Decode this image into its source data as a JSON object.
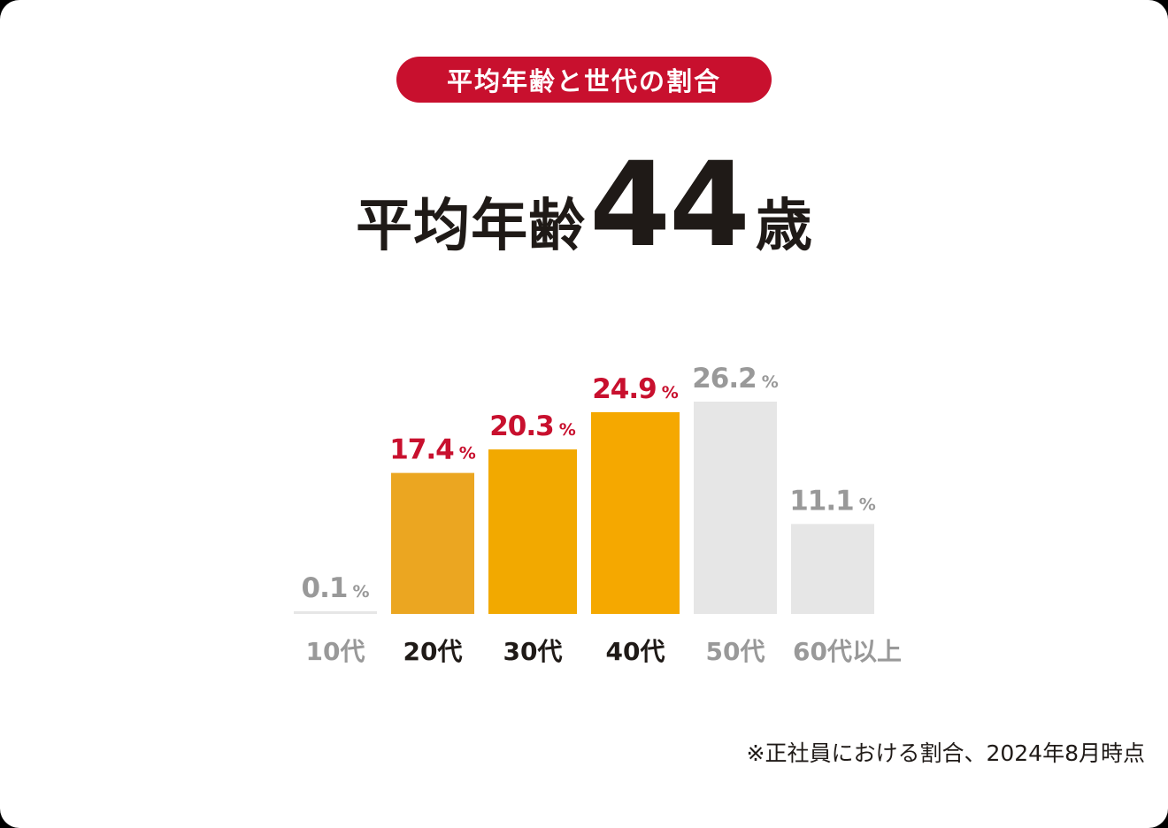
{
  "badge": "平均年齢と世代の割合",
  "headline": {
    "prefix": "平均年齢",
    "value": "44",
    "suffix": "歳"
  },
  "footnote": "※正社員における割合、2024年8月時点",
  "chart_data": {
    "type": "bar",
    "categories": [
      "10代",
      "20代",
      "30代",
      "40代",
      "50代",
      "60代以上"
    ],
    "values": [
      0.1,
      17.4,
      20.3,
      24.9,
      26.2,
      11.1
    ],
    "value_labels": [
      "0.1",
      "17.4",
      "20.3",
      "24.9",
      "26.2",
      "11.1"
    ],
    "unit": "%",
    "ylim": [
      0,
      26.2
    ],
    "highlighted": [
      false,
      true,
      true,
      true,
      false,
      false
    ],
    "colors": {
      "bars": [
        "#e6e6e6",
        "#eba621",
        "#f2a900",
        "#f5a800",
        "#e6e6e6",
        "#e6e6e6"
      ],
      "value_highlight": "#c8102e",
      "value_muted": "#999999",
      "label_highlight": "#1f1a17",
      "label_muted": "#999999"
    },
    "grid": false,
    "legend": "none"
  }
}
